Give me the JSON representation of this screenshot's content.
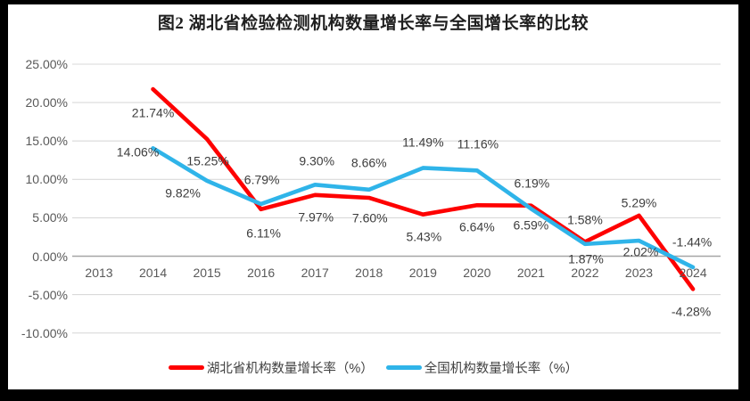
{
  "chart": {
    "title": "图2  湖北省检验检测机构数量增长率与全国增长率的比较"
  },
  "chart_data": {
    "type": "line",
    "title": "图2  湖北省检验检测机构数量增长率与全国增长率的比较",
    "categories": [
      "2013",
      "2014",
      "2015",
      "2016",
      "2017",
      "2018",
      "2019",
      "2020",
      "2021",
      "2022",
      "2023",
      "2024"
    ],
    "series": [
      {
        "name": "湖北省机构数量增长率（%）",
        "color": "#fe0000",
        "values": [
          null,
          21.74,
          15.25,
          6.11,
          7.97,
          7.6,
          5.43,
          6.64,
          6.59,
          1.87,
          5.29,
          -4.28
        ],
        "labels": [
          null,
          "21.74%",
          "15.25%",
          "6.11%",
          "7.97%",
          "7.60%",
          "5.43%",
          "6.64%",
          "6.59%",
          "1.87%",
          "5.29%",
          "-4.28%"
        ],
        "label_offsets": [
          null,
          [
            0,
            27
          ],
          [
            1,
            25
          ],
          [
            3,
            27
          ],
          [
            1,
            25
          ],
          [
            1,
            23
          ],
          [
            1,
            25
          ],
          [
            0,
            25
          ],
          [
            0,
            22
          ],
          [
            1,
            20
          ],
          [
            0,
            -14
          ],
          [
            -2,
            26
          ]
        ]
      },
      {
        "name": "全国机构数量增长率（%）",
        "color": "#2fb4e9",
        "values": [
          null,
          14.06,
          9.82,
          6.79,
          9.3,
          8.66,
          11.49,
          11.16,
          6.19,
          1.58,
          2.02,
          -1.44
        ],
        "labels": [
          null,
          "14.06%",
          "9.82%",
          "6.79%",
          "9.30%",
          "8.66%",
          "11.49%",
          "11.16%",
          "6.19%",
          "1.58%",
          "2.02%",
          "-1.44%"
        ],
        "label_offsets": [
          null,
          [
            -17,
            5
          ],
          [
            -27,
            14
          ],
          [
            1,
            -27
          ],
          [
            2,
            -26
          ],
          [
            0,
            -30
          ],
          [
            0,
            -28
          ],
          [
            1,
            -29
          ],
          [
            1,
            -28
          ],
          [
            0,
            -27
          ],
          [
            2,
            13
          ],
          [
            -1,
            -28
          ]
        ]
      }
    ],
    "y_axis": {
      "ticks": [
        {
          "value": 25,
          "label": "25.00%"
        },
        {
          "value": 20,
          "label": "20.00%"
        },
        {
          "value": 15,
          "label": "15.00%"
        },
        {
          "value": 10,
          "label": "10.00%"
        },
        {
          "value": 5,
          "label": "5.00%"
        },
        {
          "value": 0,
          "label": "0.00%"
        },
        {
          "value": -5,
          "label": "-5.00%"
        },
        {
          "value": -10,
          "label": "-10.00%"
        }
      ]
    },
    "ylim": [
      -10,
      25
    ],
    "grid": true,
    "legend_position": "bottom",
    "colors": {
      "gridline": "#d9d9d9",
      "zero_axis": "#a6a6a6",
      "tick_text": "#595959",
      "data_label_text": "#3d3d3d",
      "background": "#ffffff",
      "frame": "#000000"
    }
  }
}
